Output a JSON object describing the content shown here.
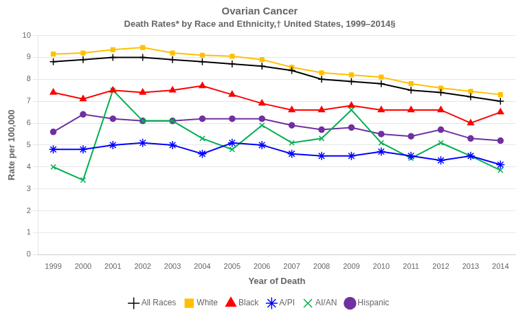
{
  "chart_data": {
    "type": "line",
    "title": "Ovarian Cancer",
    "subtitle": "Death Rates* by Race and Ethnicity,† United States, 1999–2014§",
    "x_label": "Year of Death",
    "y_label": "Rate per 100,000",
    "x": [
      1999,
      2000,
      2001,
      2002,
      2003,
      2004,
      2005,
      2006,
      2007,
      2008,
      2009,
      2010,
      2011,
      2012,
      2013,
      2014
    ],
    "series": [
      {
        "name": "All Races",
        "color": "#000000",
        "marker": "plus",
        "values": [
          8.8,
          8.9,
          9.0,
          9.0,
          8.9,
          8.8,
          8.7,
          8.6,
          8.4,
          8.0,
          7.9,
          7.8,
          7.5,
          7.4,
          7.2,
          7.0
        ]
      },
      {
        "name": "White",
        "color": "#FFC000",
        "marker": "square",
        "values": [
          9.15,
          9.2,
          9.35,
          9.45,
          9.2,
          9.1,
          9.05,
          8.9,
          8.55,
          8.3,
          8.2,
          8.1,
          7.8,
          7.6,
          7.45,
          7.3
        ]
      },
      {
        "name": "Black",
        "color": "#FF0000",
        "marker": "triangle",
        "values": [
          7.4,
          7.1,
          7.5,
          7.4,
          7.5,
          7.7,
          7.3,
          6.9,
          6.6,
          6.6,
          6.8,
          6.6,
          6.6,
          6.6,
          6.0,
          6.5
        ]
      },
      {
        "name": "A/PI",
        "color": "#0000FF",
        "marker": "star",
        "values": [
          4.8,
          4.8,
          5.0,
          5.1,
          5.0,
          4.6,
          5.1,
          5.0,
          4.6,
          4.5,
          4.5,
          4.7,
          4.5,
          4.3,
          4.5,
          4.1
        ]
      },
      {
        "name": "AI/AN",
        "color": "#00B050",
        "marker": "x",
        "values": [
          4.0,
          3.4,
          7.5,
          6.1,
          6.1,
          5.3,
          4.8,
          5.9,
          5.1,
          5.3,
          6.6,
          5.1,
          4.4,
          5.1,
          4.5,
          3.85
        ]
      },
      {
        "name": "Hispanic",
        "color": "#7030A0",
        "marker": "circle",
        "values": [
          5.6,
          6.4,
          6.2,
          6.1,
          6.1,
          6.2,
          6.2,
          6.2,
          5.9,
          5.7,
          5.8,
          5.5,
          5.4,
          5.7,
          5.3,
          5.2
        ]
      }
    ],
    "xlim": [
      1998.5,
      2014.5
    ],
    "xticks": [
      1999,
      2000,
      2001,
      2002,
      2003,
      2004,
      2005,
      2006,
      2007,
      2008,
      2009,
      2010,
      2011,
      2012,
      2013,
      2014
    ],
    "ylim": [
      0,
      10
    ],
    "yticks": [
      0,
      1,
      2,
      3,
      4,
      5,
      6,
      7,
      8,
      9,
      10
    ],
    "grid": "y",
    "legend": "bottom"
  }
}
